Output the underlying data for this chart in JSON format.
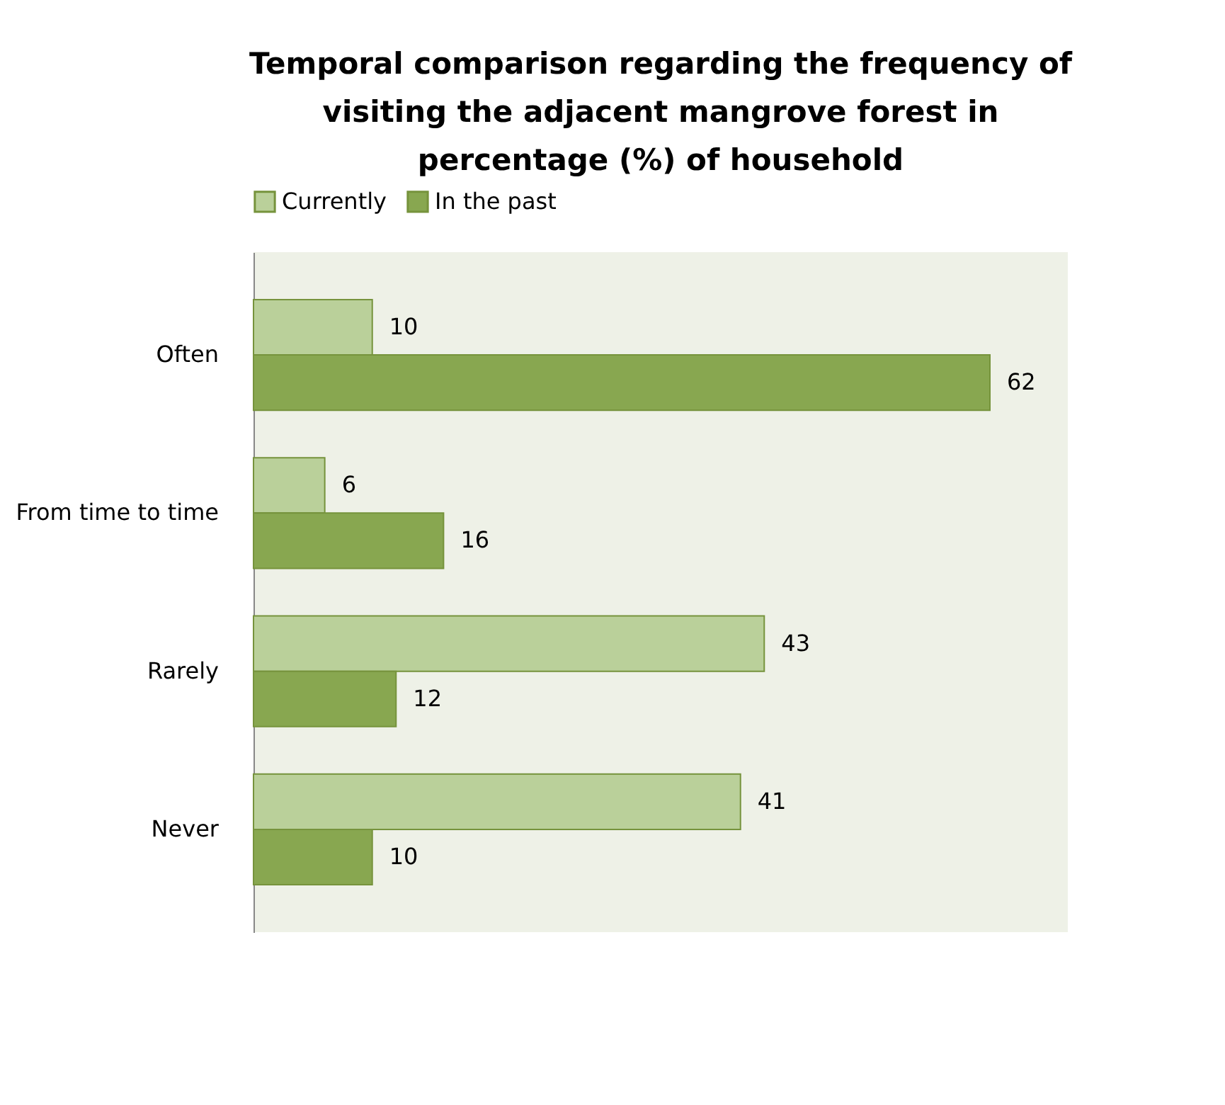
{
  "chart_data": {
    "type": "bar",
    "orientation": "horizontal",
    "title": [
      "Temporal comparison regarding the frequency of",
      "visiting the adjacent mangrove forest in",
      "percentage (%) of household"
    ],
    "categories": [
      "Often",
      "From time to time",
      "Rarely",
      "Never"
    ],
    "series": [
      {
        "name": "Currently",
        "color": "#bad09a",
        "values": [
          10,
          6,
          43,
          41
        ]
      },
      {
        "name": "In the past",
        "color": "#88a750",
        "values": [
          62,
          16,
          12,
          10
        ]
      }
    ],
    "data_labels": true,
    "legend": "top",
    "grid": false,
    "tick_labels": "y"
  }
}
